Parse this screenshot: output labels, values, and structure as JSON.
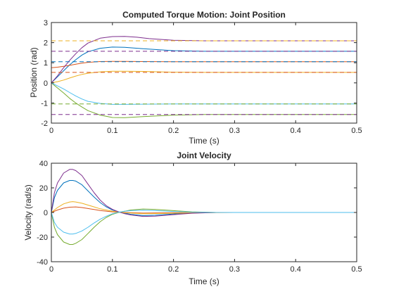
{
  "colors": {
    "blue": "#0072BD",
    "orange": "#D95319",
    "yellow": "#EDB120",
    "purple": "#7E2F8E",
    "green": "#77AC30",
    "cyan": "#4DBEEE"
  },
  "chart_data": [
    {
      "type": "line",
      "title": "Computed Torque Motion: Joint Position",
      "xlabel": "Time (s)",
      "ylabel": "Position (rad)",
      "xlim": [
        0,
        0.5
      ],
      "ylim": [
        -2,
        3
      ],
      "xticks": [
        0,
        0.1,
        0.2,
        0.3,
        0.4,
        0.5
      ],
      "xtick_labels": [
        "0",
        "0.1",
        "0.2",
        "0.3",
        "0.4",
        "0.5"
      ],
      "yticks": [
        -2,
        -1,
        0,
        1,
        2,
        3
      ],
      "ytick_labels": [
        "-2",
        "-1",
        "0",
        "1",
        "2",
        "3"
      ],
      "grid": false,
      "series": [
        {
          "color": "blue",
          "style": "solid",
          "x": [
            0,
            0.01,
            0.02,
            0.03,
            0.04,
            0.05,
            0.06,
            0.08,
            0.1,
            0.12,
            0.15,
            0.2,
            0.25,
            0.3,
            0.4,
            0.5
          ],
          "y": [
            0,
            0.3,
            0.6,
            0.9,
            1.15,
            1.38,
            1.55,
            1.72,
            1.78,
            1.77,
            1.7,
            1.6,
            1.57,
            1.57,
            1.57,
            1.57
          ]
        },
        {
          "color": "orange",
          "style": "solid",
          "x": [
            0,
            0.01,
            0.02,
            0.03,
            0.04,
            0.05,
            0.06,
            0.08,
            0.1,
            0.12,
            0.15,
            0.2,
            0.25,
            0.3,
            0.4,
            0.5
          ],
          "y": [
            0.75,
            0.78,
            0.82,
            0.87,
            0.93,
            0.98,
            1.02,
            1.06,
            1.07,
            1.07,
            1.06,
            1.05,
            1.05,
            1.05,
            1.05,
            1.05
          ]
        },
        {
          "color": "yellow",
          "style": "solid",
          "x": [
            0,
            0.01,
            0.02,
            0.03,
            0.04,
            0.05,
            0.06,
            0.08,
            0.1,
            0.12,
            0.15,
            0.2,
            0.25,
            0.3,
            0.4,
            0.5
          ],
          "y": [
            0,
            0.06,
            0.14,
            0.24,
            0.34,
            0.42,
            0.48,
            0.55,
            0.58,
            0.58,
            0.57,
            0.53,
            0.52,
            0.52,
            0.52,
            0.52
          ]
        },
        {
          "color": "purple",
          "style": "solid",
          "x": [
            0,
            0.01,
            0.02,
            0.03,
            0.04,
            0.05,
            0.06,
            0.08,
            0.1,
            0.12,
            0.14,
            0.16,
            0.2,
            0.25,
            0.3,
            0.4,
            0.5
          ],
          "y": [
            0,
            0.35,
            0.75,
            1.12,
            1.45,
            1.75,
            1.98,
            2.22,
            2.3,
            2.31,
            2.27,
            2.2,
            2.12,
            2.09,
            2.09,
            2.09,
            2.09
          ]
        },
        {
          "color": "green",
          "style": "solid",
          "x": [
            0,
            0.01,
            0.02,
            0.03,
            0.04,
            0.05,
            0.06,
            0.08,
            0.1,
            0.12,
            0.15,
            0.2,
            0.25,
            0.3,
            0.4,
            0.5
          ],
          "y": [
            0,
            -0.25,
            -0.5,
            -0.77,
            -1.0,
            -1.2,
            -1.38,
            -1.6,
            -1.72,
            -1.73,
            -1.68,
            -1.6,
            -1.57,
            -1.57,
            -1.57,
            -1.57
          ]
        },
        {
          "color": "cyan",
          "style": "solid",
          "x": [
            0,
            0.01,
            0.02,
            0.03,
            0.04,
            0.05,
            0.06,
            0.08,
            0.1,
            0.12,
            0.15,
            0.2,
            0.25,
            0.3,
            0.4,
            0.5
          ],
          "y": [
            0,
            -0.15,
            -0.3,
            -0.48,
            -0.65,
            -0.8,
            -0.92,
            -1.02,
            -1.07,
            -1.07,
            -1.06,
            -1.05,
            -1.05,
            -1.05,
            -1.05,
            -1.05
          ]
        },
        {
          "color": "yellow",
          "style": "dashed",
          "x": [
            0,
            0.5
          ],
          "y": [
            2.09,
            2.09
          ]
        },
        {
          "color": "purple",
          "style": "dashed",
          "x": [
            0,
            0.5
          ],
          "y": [
            1.57,
            1.57
          ]
        },
        {
          "color": "blue",
          "style": "dashed",
          "x": [
            0,
            0.5
          ],
          "y": [
            1.05,
            1.05
          ]
        },
        {
          "color": "orange",
          "style": "dashed",
          "x": [
            0,
            0.5
          ],
          "y": [
            0.52,
            0.52
          ]
        },
        {
          "color": "green",
          "style": "dashed",
          "x": [
            0,
            0.5
          ],
          "y": [
            -1.05,
            -1.05
          ]
        },
        {
          "color": "purple",
          "style": "dashed",
          "x": [
            0,
            0.5
          ],
          "y": [
            -1.57,
            -1.57
          ]
        }
      ]
    },
    {
      "type": "line",
      "title": "Joint Velocity",
      "xlabel": "Time (s)",
      "ylabel": "Velocity (rad/s)",
      "xlim": [
        0,
        0.5
      ],
      "ylim": [
        -40,
        40
      ],
      "xticks": [
        0,
        0.1,
        0.2,
        0.3,
        0.4,
        0.5
      ],
      "xtick_labels": [
        "0",
        "0.1",
        "0.2",
        "0.3",
        "0.4",
        "0.5"
      ],
      "yticks": [
        -40,
        -20,
        0,
        20,
        40
      ],
      "ytick_labels": [
        "-40",
        "-20",
        "0",
        "20",
        "40"
      ],
      "grid": false,
      "series": [
        {
          "color": "blue",
          "style": "solid",
          "x": [
            0,
            0.005,
            0.01,
            0.02,
            0.03,
            0.035,
            0.04,
            0.05,
            0.06,
            0.07,
            0.08,
            0.09,
            0.1,
            0.11,
            0.12,
            0.13,
            0.15,
            0.17,
            0.2,
            0.23,
            0.27,
            0.3,
            0.4,
            0.5
          ],
          "y": [
            0,
            12,
            18,
            24,
            26,
            26,
            25.5,
            22.5,
            17.5,
            12.5,
            8,
            4.5,
            2,
            0.5,
            -0.5,
            -1.5,
            -2.5,
            -2.2,
            -1.2,
            -0.4,
            0,
            0,
            0,
            0
          ]
        },
        {
          "color": "orange",
          "style": "solid",
          "x": [
            0,
            0.01,
            0.02,
            0.03,
            0.04,
            0.05,
            0.06,
            0.07,
            0.08,
            0.1,
            0.12,
            0.15,
            0.2,
            0.3,
            0.5
          ],
          "y": [
            0,
            2,
            3.5,
            4.3,
            4.5,
            4,
            3.2,
            2.4,
            1.6,
            0.5,
            0,
            -0.5,
            -0.2,
            0,
            0
          ]
        },
        {
          "color": "yellow",
          "style": "solid",
          "x": [
            0,
            0.01,
            0.02,
            0.03,
            0.035,
            0.04,
            0.05,
            0.06,
            0.07,
            0.08,
            0.1,
            0.12,
            0.15,
            0.2,
            0.25,
            0.3,
            0.5
          ],
          "y": [
            0,
            4,
            7,
            8.5,
            8.8,
            8.5,
            7.5,
            6,
            4.5,
            3,
            1,
            -0.2,
            -1,
            -0.6,
            -0.1,
            0,
            0
          ]
        },
        {
          "color": "purple",
          "style": "solid",
          "x": [
            0,
            0.005,
            0.01,
            0.02,
            0.03,
            0.035,
            0.04,
            0.05,
            0.06,
            0.07,
            0.08,
            0.09,
            0.1,
            0.11,
            0.12,
            0.13,
            0.15,
            0.17,
            0.2,
            0.23,
            0.27,
            0.3,
            0.4,
            0.5
          ],
          "y": [
            0,
            16,
            24,
            32,
            35,
            35,
            34,
            30,
            23,
            16,
            10,
            5.5,
            2.5,
            0.5,
            -1,
            -2,
            -3.2,
            -3,
            -1.8,
            -0.6,
            0,
            0,
            0,
            0
          ]
        },
        {
          "color": "green",
          "style": "solid",
          "x": [
            0,
            0.005,
            0.01,
            0.02,
            0.03,
            0.035,
            0.04,
            0.05,
            0.06,
            0.07,
            0.08,
            0.09,
            0.1,
            0.11,
            0.12,
            0.13,
            0.15,
            0.17,
            0.2,
            0.23,
            0.27,
            0.3,
            0.4,
            0.5
          ],
          "y": [
            0,
            -12,
            -18,
            -24,
            -26,
            -26,
            -25,
            -22,
            -17,
            -12,
            -7.5,
            -4,
            -1.5,
            0,
            1,
            2,
            2.8,
            2.5,
            1.5,
            0.5,
            0,
            0,
            0,
            0
          ]
        },
        {
          "color": "cyan",
          "style": "solid",
          "x": [
            0,
            0.005,
            0.01,
            0.02,
            0.03,
            0.035,
            0.04,
            0.05,
            0.06,
            0.07,
            0.08,
            0.09,
            0.1,
            0.11,
            0.12,
            0.13,
            0.15,
            0.17,
            0.2,
            0.23,
            0.27,
            0.3,
            0.4,
            0.5
          ],
          "y": [
            0,
            -8,
            -12,
            -16,
            -17.5,
            -17.5,
            -17,
            -15,
            -12,
            -8.5,
            -5.5,
            -3,
            -1,
            0.2,
            1,
            1.5,
            1.8,
            1.5,
            0.8,
            0.2,
            0,
            0,
            0,
            0
          ]
        }
      ]
    }
  ]
}
